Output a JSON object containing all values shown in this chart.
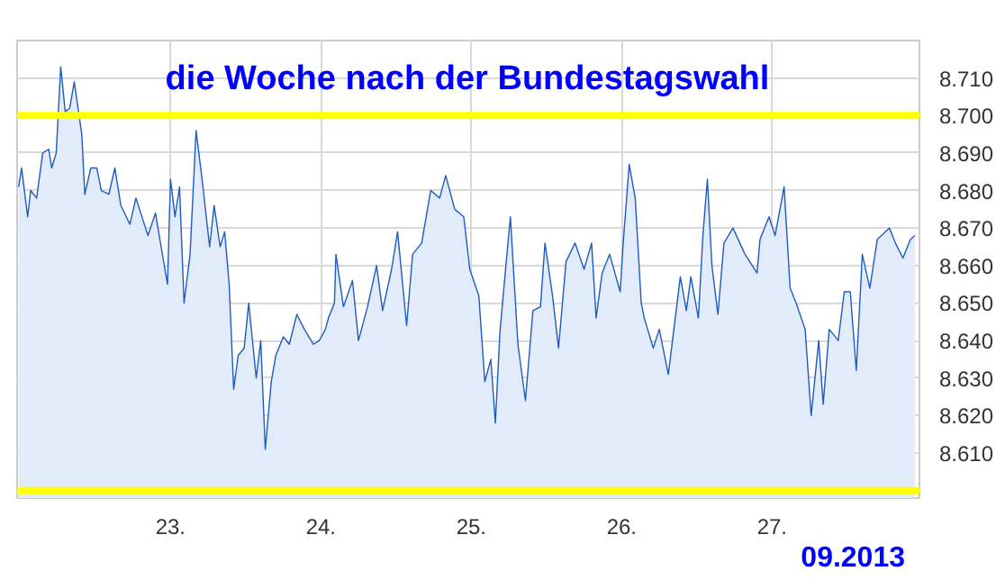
{
  "chart_data": {
    "type": "area",
    "title": "die Woche nach der Bundestagswahl",
    "x": [
      21.99,
      22.01,
      22.05,
      22.07,
      22.11,
      22.15,
      22.19,
      22.21,
      22.24,
      22.27,
      22.3,
      22.33,
      22.36,
      22.41,
      22.43,
      22.47,
      22.51,
      22.54,
      22.59,
      22.63,
      22.67,
      22.73,
      22.77,
      22.85,
      22.9,
      22.95,
      22.98,
      23.0,
      23.03,
      23.06,
      23.09,
      23.13,
      23.17,
      23.21,
      23.26,
      23.29,
      23.33,
      23.36,
      23.39,
      23.42,
      23.45,
      23.49,
      23.52,
      23.57,
      23.6,
      23.63,
      23.67,
      23.7,
      23.75,
      23.79,
      23.84,
      23.89,
      23.95,
      23.99,
      24.03,
      24.05,
      24.09,
      24.1,
      24.15,
      24.21,
      24.25,
      24.31,
      24.37,
      24.41,
      24.47,
      24.51,
      24.57,
      24.61,
      24.67,
      24.73,
      24.79,
      24.83,
      24.89,
      24.95,
      24.99,
      25.05,
      25.09,
      25.13,
      25.16,
      25.19,
      25.23,
      25.26,
      25.31,
      25.36,
      25.41,
      25.46,
      25.49,
      25.54,
      25.58,
      25.63,
      25.69,
      25.75,
      25.8,
      25.83,
      25.87,
      25.92,
      25.99,
      26.01,
      26.05,
      26.09,
      26.13,
      26.15,
      26.21,
      26.25,
      26.31,
      26.39,
      26.43,
      26.46,
      26.51,
      26.54,
      26.57,
      26.6,
      26.64,
      26.68,
      26.74,
      26.82,
      26.9,
      26.92,
      26.98,
      27.02,
      27.08,
      27.12,
      27.16,
      27.22,
      27.26,
      27.31,
      27.34,
      27.38,
      27.44,
      27.48,
      27.52,
      27.56,
      27.6,
      27.65,
      27.7,
      27.78,
      27.82,
      27.87,
      27.92,
      27.95
    ],
    "series": [
      {
        "color": "#1f5cbf",
        "values": [
          8.681,
          8.686,
          8.673,
          8.68,
          8.678,
          8.69,
          8.691,
          8.686,
          8.69,
          8.713,
          8.701,
          8.702,
          8.709,
          8.695,
          8.679,
          8.686,
          8.686,
          8.68,
          8.679,
          8.686,
          8.676,
          8.671,
          8.678,
          8.668,
          8.674,
          8.662,
          8.655,
          8.683,
          8.673,
          8.681,
          8.65,
          8.663,
          8.696,
          8.683,
          8.665,
          8.676,
          8.665,
          8.669,
          8.655,
          8.627,
          8.636,
          8.638,
          8.65,
          8.63,
          8.64,
          8.611,
          8.629,
          8.636,
          8.641,
          8.639,
          8.647,
          8.643,
          8.639,
          8.64,
          8.643,
          8.646,
          8.65,
          8.663,
          8.649,
          8.656,
          8.64,
          8.649,
          8.66,
          8.648,
          8.659,
          8.669,
          8.644,
          8.663,
          8.666,
          8.68,
          8.678,
          8.684,
          8.675,
          8.673,
          8.659,
          8.652,
          8.629,
          8.635,
          8.618,
          8.642,
          8.66,
          8.673,
          8.639,
          8.624,
          8.648,
          8.649,
          8.666,
          8.652,
          8.638,
          8.661,
          8.666,
          8.659,
          8.666,
          8.646,
          8.658,
          8.663,
          8.653,
          8.666,
          8.687,
          8.678,
          8.65,
          8.646,
          8.638,
          8.643,
          8.631,
          8.657,
          8.648,
          8.657,
          8.646,
          8.668,
          8.683,
          8.66,
          8.647,
          8.666,
          8.67,
          8.663,
          8.658,
          8.667,
          8.673,
          8.668,
          8.681,
          8.654,
          8.65,
          8.643,
          8.62,
          8.64,
          8.623,
          8.643,
          8.64,
          8.653,
          8.653,
          8.632,
          8.663,
          8.654,
          8.667,
          8.67,
          8.666,
          8.662,
          8.667,
          8.668
        ]
      }
    ],
    "xlim": [
      21.98,
      27.98
    ],
    "ylim": [
      8.598,
      8.72
    ],
    "xticks": [
      {
        "value": 23,
        "label": "23."
      },
      {
        "value": 24,
        "label": "24."
      },
      {
        "value": 25,
        "label": "25."
      },
      {
        "value": 26,
        "label": "26."
      },
      {
        "value": 27,
        "label": "27."
      }
    ],
    "yticks": [
      {
        "value": 8.61,
        "label": "8.610"
      },
      {
        "value": 8.62,
        "label": "8.620"
      },
      {
        "value": 8.63,
        "label": "8.630"
      },
      {
        "value": 8.64,
        "label": "8.640"
      },
      {
        "value": 8.65,
        "label": "8.650"
      },
      {
        "value": 8.66,
        "label": "8.660"
      },
      {
        "value": 8.67,
        "label": "8.670"
      },
      {
        "value": 8.68,
        "label": "8.680"
      },
      {
        "value": 8.69,
        "label": "8.690"
      },
      {
        "value": 8.7,
        "label": "8.700"
      },
      {
        "value": 8.71,
        "label": "8.710"
      }
    ],
    "ref_lines": [
      {
        "axis": "y",
        "value": 8.7,
        "color": "#ffff00"
      },
      {
        "axis": "y",
        "value": 8.6,
        "color": "#ffff00"
      }
    ],
    "annotations": [
      "09.2013"
    ],
    "grid": true
  }
}
